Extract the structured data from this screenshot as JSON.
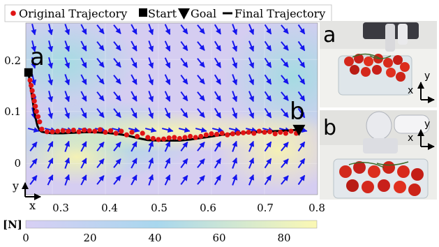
{
  "legend": {
    "original": "Original Trajectory",
    "start": "Start",
    "goal": "Goal",
    "final": "Final Trajectory"
  },
  "axes": {
    "xticks": [
      "0.3",
      "0.4",
      "0.5",
      "0.6",
      "0.7",
      "0.8"
    ],
    "yticks": [
      "0.2",
      "0.1",
      "0"
    ],
    "axis_x": "x",
    "axis_y": "y"
  },
  "markers": {
    "a": "a",
    "b": "b"
  },
  "photos": {
    "a": {
      "label": "a",
      "axis_x": "x",
      "axis_y": "y"
    },
    "b": {
      "label": "b",
      "axis_x": "x",
      "axis_y": "y"
    }
  },
  "colorbar": {
    "unit": "[N]",
    "ticks": [
      "0",
      "20",
      "40",
      "60",
      "80"
    ]
  },
  "chart_data": {
    "type": "scatter",
    "xlim": [
      0.25,
      0.8
    ],
    "ylim": [
      -0.06,
      0.27
    ],
    "start": {
      "x": 0.255,
      "y": 0.175
    },
    "goal": {
      "x": 0.765,
      "y": 0.065
    },
    "original_trajectory": {
      "x": [
        0.258,
        0.26,
        0.262,
        0.264,
        0.266,
        0.268,
        0.27,
        0.273,
        0.276,
        0.28,
        0.29,
        0.3,
        0.31,
        0.32,
        0.33,
        0.34,
        0.35,
        0.36,
        0.37,
        0.38,
        0.39,
        0.4,
        0.41,
        0.42,
        0.43,
        0.44,
        0.45,
        0.46,
        0.47,
        0.48,
        0.49,
        0.5,
        0.51,
        0.52,
        0.53,
        0.54,
        0.55,
        0.56,
        0.57,
        0.58,
        0.59,
        0.6,
        0.61,
        0.62,
        0.63,
        0.64,
        0.65,
        0.66,
        0.67,
        0.68,
        0.69,
        0.7,
        0.71,
        0.72,
        0.73,
        0.74,
        0.75,
        0.76
      ],
      "y": [
        0.16,
        0.15,
        0.14,
        0.13,
        0.12,
        0.11,
        0.1,
        0.09,
        0.08,
        0.066,
        0.061,
        0.061,
        0.062,
        0.063,
        0.062,
        0.064,
        0.061,
        0.064,
        0.063,
        0.062,
        0.065,
        0.06,
        0.063,
        0.058,
        0.062,
        0.055,
        0.06,
        0.052,
        0.058,
        0.05,
        0.048,
        0.046,
        0.047,
        0.049,
        0.05,
        0.048,
        0.05,
        0.052,
        0.05,
        0.052,
        0.055,
        0.057,
        0.056,
        0.058,
        0.055,
        0.057,
        0.058,
        0.059,
        0.06,
        0.058,
        0.062,
        0.06,
        0.061,
        0.057,
        0.06,
        0.058,
        0.062,
        0.058
      ]
    },
    "final_trajectory": {
      "x": [
        0.255,
        0.257,
        0.26,
        0.263,
        0.266,
        0.269,
        0.272,
        0.276,
        0.28,
        0.29,
        0.3,
        0.32,
        0.34,
        0.36,
        0.38,
        0.4,
        0.42,
        0.44,
        0.46,
        0.48,
        0.5,
        0.52,
        0.54,
        0.56,
        0.58,
        0.6,
        0.62,
        0.64,
        0.66,
        0.68,
        0.7,
        0.72,
        0.74,
        0.765
      ],
      "y": [
        0.175,
        0.16,
        0.14,
        0.12,
        0.1,
        0.085,
        0.072,
        0.064,
        0.061,
        0.059,
        0.058,
        0.058,
        0.059,
        0.06,
        0.06,
        0.059,
        0.057,
        0.054,
        0.049,
        0.045,
        0.044,
        0.044,
        0.044,
        0.046,
        0.049,
        0.052,
        0.055,
        0.057,
        0.059,
        0.06,
        0.061,
        0.062,
        0.063,
        0.065
      ]
    },
    "colorbar_range": [
      0,
      90
    ],
    "colormap_colors": [
      "#d7cdf3",
      "#9fd6ec",
      "#fbf7b0"
    ]
  }
}
